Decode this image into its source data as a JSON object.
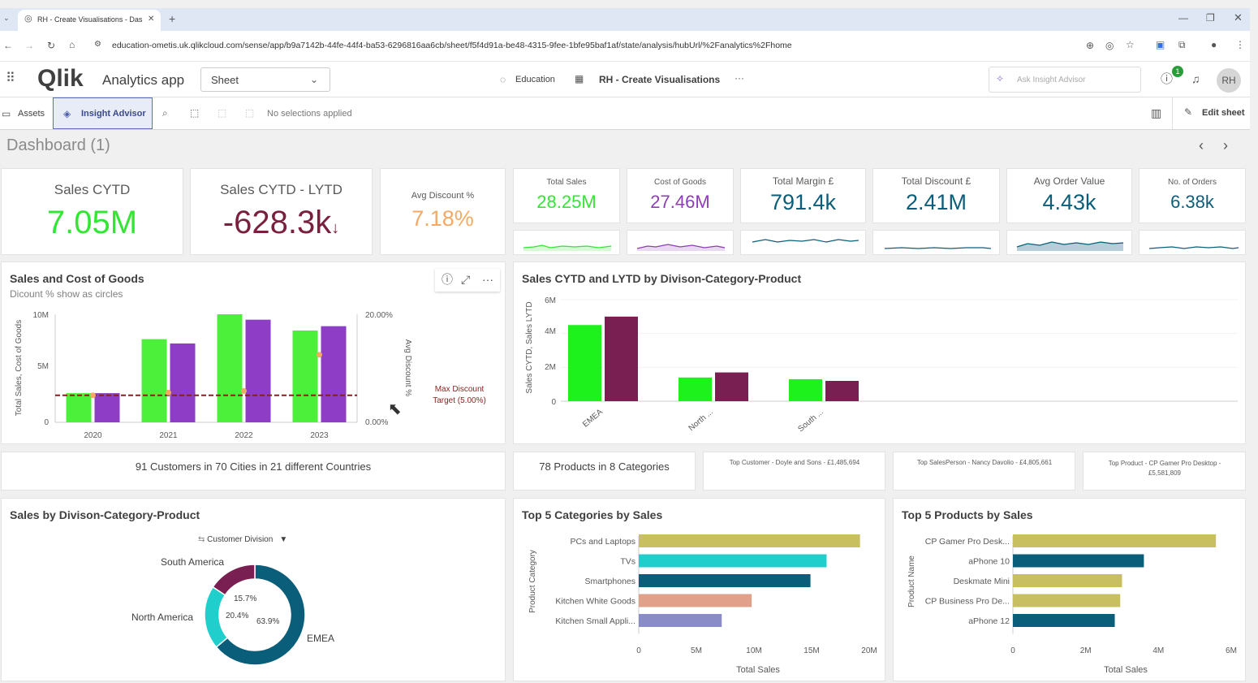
{
  "browser": {
    "tab_title": "RH - Create Visualisations - Das",
    "url": "education-ometis.uk.qlikcloud.com/sense/app/b9a7142b-44fe-44f4-ba53-6296816aa6cb/sheet/f5f4d91a-be48-4315-9fee-1bfe95baf1af/state/analysis/hubUrl/%2Fanalytics%2Fhome"
  },
  "header": {
    "logo": "Qlik",
    "app_label": "Analytics app",
    "sheet_select": "Sheet",
    "space": "Education",
    "app_name": "RH - Create Visualisations",
    "ask_placeholder": "Ask Insight Advisor",
    "help_badge": "1",
    "avatar": "RH"
  },
  "toolbar": {
    "assets": "Assets",
    "insight": "Insight Advisor",
    "selections": "No selections applied",
    "edit": "Edit sheet"
  },
  "sheet": {
    "title": "Dashboard (1)"
  },
  "kpis": [
    {
      "title": "Sales CYTD",
      "value": "7.05M",
      "color": "#33e633"
    },
    {
      "title": "Sales CYTD - LYTD",
      "value": "-628.3k",
      "arrow": "↓",
      "color": "#7a1f3d"
    },
    {
      "title": "Avg Discount %",
      "value": "7.18%",
      "color": "#f5a962"
    },
    {
      "title": "Total Sales",
      "value": "28.25M",
      "color": "#33e633"
    },
    {
      "title": "Cost of Goods",
      "value": "27.46M",
      "color": "#8e3eb4"
    },
    {
      "title": "Total Margin £",
      "value": "791.4k",
      "color": "#0b5e7a"
    },
    {
      "title": "Total Discount £",
      "value": "2.41M",
      "color": "#0b5e7a"
    },
    {
      "title": "Avg Order Value",
      "value": "4.43k",
      "color": "#0b5e7a"
    },
    {
      "title": "No. of Orders",
      "value": "6.38k",
      "color": "#0b5e7a"
    }
  ],
  "combo": {
    "title": "Sales and Cost of Goods",
    "subtitle": "Dicount % show as circles",
    "ylabel": "Total Sales, Cost of Goods",
    "y2label": "Avg Discount %",
    "yticks": [
      "10M",
      "5M",
      "0"
    ],
    "y2ticks": [
      "20.00%",
      "0.00%"
    ],
    "ref_line1": "Max Discount",
    "ref_line2": "Target (5.00%)"
  },
  "div_chart": {
    "title": "Sales CYTD and LYTD by Divison-Category-Product",
    "ylabel": "Sales CYTD, Sales LYTD",
    "yticks": [
      "6M",
      "4M",
      "2M",
      "0"
    ]
  },
  "info": {
    "customers": "91 Customers in 70 Cities in 21 different Countries",
    "products": "78 Products in 8 Categories",
    "top_customer": "Top Customer - Doyle and Sons - £1,485,694",
    "top_salesperson": "Top SalesPerson - Nancy Davolio - £4,805,661",
    "top_product": "Top Product - CP Gamer Pro Desktop - £5,581,809"
  },
  "donut": {
    "title": "Sales by Divison-Category-Product",
    "dimension": "Customer Division",
    "labels": [
      "South America",
      "North America",
      "EMEA"
    ],
    "pct_labels": [
      "15.7%",
      "20.4%",
      "63.9%"
    ]
  },
  "cat_chart": {
    "title": "Top 5 Categories by Sales",
    "ylabel": "Product Category",
    "xlabel": "Total Sales",
    "xticks": [
      "0",
      "5M",
      "10M",
      "15M",
      "20M"
    ]
  },
  "prod_chart": {
    "title": "Top 5 Products by Sales",
    "ylabel": "Product Name",
    "xlabel": "Total Sales",
    "xticks": [
      "0",
      "2M",
      "4M",
      "6M"
    ]
  },
  "chart_data": [
    {
      "type": "bar",
      "title": "Sales and Cost of Goods",
      "categories": [
        "2020",
        "2021",
        "2022",
        "2023"
      ],
      "series": [
        {
          "name": "Total Sales",
          "values": [
            2.7,
            7.7,
            10.0,
            8.5
          ],
          "color": "#4cf03a"
        },
        {
          "name": "Cost of Goods",
          "values": [
            2.7,
            7.3,
            9.5,
            8.9
          ],
          "color": "#8e3ec6"
        },
        {
          "name": "Avg Discount %",
          "values": [
            5.0,
            5.5,
            5.8,
            12.5
          ],
          "color": "#f5a962",
          "axis": "right"
        }
      ],
      "ylim": [
        0,
        10
      ],
      "y2lim": [
        0,
        20
      ],
      "reference": 5.0
    },
    {
      "type": "bar",
      "title": "Sales CYTD and LYTD by Divison-Category-Product",
      "categories": [
        "EMEA",
        "North ...",
        "South ..."
      ],
      "series": [
        {
          "name": "Sales CYTD",
          "values": [
            4.5,
            1.4,
            1.3
          ],
          "color": "#1df21d"
        },
        {
          "name": "Sales LYTD",
          "values": [
            5.0,
            1.7,
            1.2
          ],
          "color": "#7a1f52"
        }
      ],
      "ylim": [
        0,
        6
      ]
    },
    {
      "type": "pie",
      "title": "Sales by Divison-Category-Product",
      "categories": [
        "EMEA",
        "North America",
        "South America"
      ],
      "values": [
        63.9,
        20.4,
        15.7
      ],
      "colors": [
        "#0b5e7a",
        "#20cfcc",
        "#7a1f52"
      ]
    },
    {
      "type": "bar",
      "title": "Top 5 Categories by Sales",
      "categories": [
        "PCs and Laptops",
        "TVs",
        "Smartphones",
        "Kitchen White Goods",
        "Kitchen  Small Appli..."
      ],
      "values": [
        19.2,
        16.3,
        14.9,
        9.8,
        7.2
      ],
      "colors": [
        "#c8c060",
        "#20cfcc",
        "#0b5e7a",
        "#e0a08a",
        "#8a8cc8"
      ],
      "xlim": [
        0,
        20
      ]
    },
    {
      "type": "bar",
      "title": "Top 5 Products by Sales",
      "categories": [
        "CP Gamer Pro Desk...",
        "aPhone 10",
        "Deskmate Mini",
        "CP Business Pro De...",
        "aPhone 12"
      ],
      "values": [
        5.58,
        3.6,
        3.0,
        2.95,
        2.8
      ],
      "colors": [
        "#c8c060",
        "#0b5e7a",
        "#c8c060",
        "#c8c060",
        "#0b5e7a"
      ],
      "xlim": [
        0,
        6
      ]
    }
  ]
}
